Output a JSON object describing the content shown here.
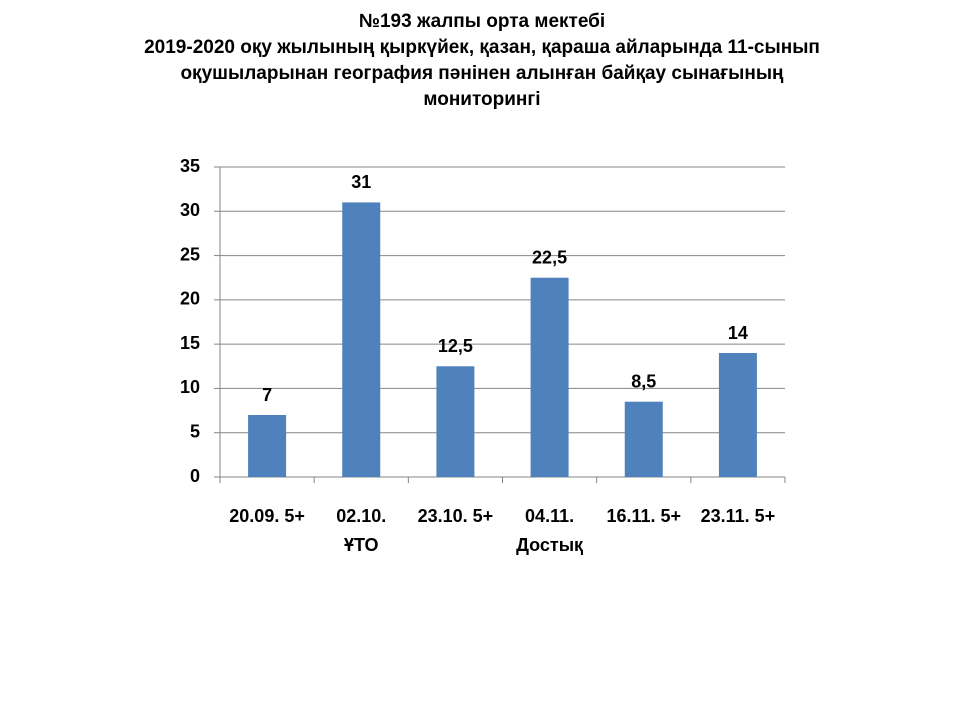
{
  "chart_data": {
    "type": "bar",
    "title": "№193  жалпы  орта  мектебі\n2019-2020  оқу жылының  қыркүйек, қазан, қараша айларында 11-сынып\nоқушыларынан география  пәнінен алынған байқау сынағының\nмониторингі",
    "categories": [
      "20.09. 5+",
      "02.10.\nҰТО",
      "23.10. 5+",
      "04.11.\nДостық",
      "16.11. 5+",
      "23.11. 5+"
    ],
    "values": [
      7,
      31,
      12.5,
      22.5,
      8.5,
      14
    ],
    "value_labels": [
      "7",
      "31",
      "12,5",
      "22,5",
      "8,5",
      "14"
    ],
    "color": "#4f81bd",
    "ylim": [
      0,
      35
    ],
    "yticks": [
      0,
      5,
      10,
      15,
      20,
      25,
      30,
      35
    ],
    "grid": true
  }
}
